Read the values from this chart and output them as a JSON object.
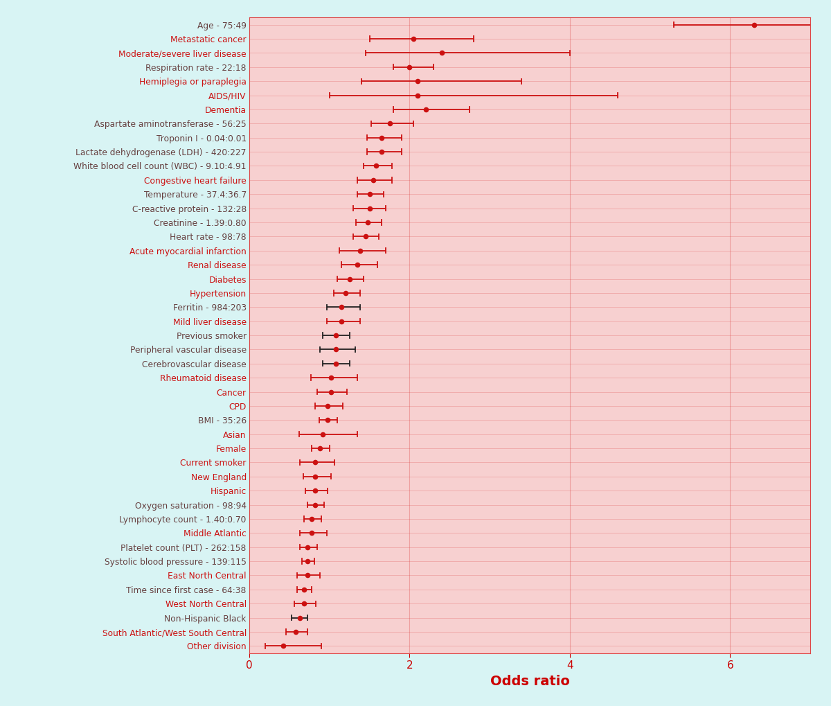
{
  "labels": [
    "Age - 75:49",
    "Metastatic cancer",
    "Moderate/severe liver disease",
    "Respiration rate - 22:18",
    "Hemiplegia or paraplegia",
    "AIDS/HIV",
    "Dementia",
    "Aspartate aminotransferase - 56:25",
    "Troponin I - 0.04:0.01",
    "Lactate dehydrogenase (LDH) - 420:227",
    "White blood cell count (WBC) - 9.10:4.91",
    "Congestive heart failure",
    "Temperature - 37.4:36.7",
    "C-reactive protein - 132:28",
    "Creatinine - 1.39:0.80",
    "Heart rate - 98:78",
    "Acute myocardial infarction",
    "Renal disease",
    "Diabetes",
    "Hypertension",
    "Ferritin - 984:203",
    "Mild liver disease",
    "Previous smoker",
    "Peripheral vascular disease",
    "Cerebrovascular disease",
    "Rheumatoid disease",
    "Cancer",
    "CPD",
    "BMI - 35:26",
    "Asian",
    "Female",
    "Current smoker",
    "New England",
    "Hispanic",
    "Oxygen saturation - 98:94",
    "Lymphocyte count - 1.40:0.70",
    "Middle Atlantic",
    "Platelet count (PLT) - 262:158",
    "Systolic blood pressure - 139:115",
    "East North Central",
    "Time since first case - 64:38",
    "West North Central",
    "Non-Hispanic Black",
    "South Atlantic/West South Central",
    "Other division"
  ],
  "estimates": [
    6.3,
    2.05,
    2.4,
    2.0,
    2.1,
    2.1,
    2.2,
    1.75,
    1.65,
    1.65,
    1.58,
    1.55,
    1.5,
    1.5,
    1.48,
    1.45,
    1.38,
    1.35,
    1.25,
    1.2,
    1.15,
    1.15,
    1.08,
    1.08,
    1.08,
    1.02,
    1.02,
    0.98,
    0.98,
    0.92,
    0.88,
    0.82,
    0.82,
    0.82,
    0.82,
    0.78,
    0.78,
    0.73,
    0.73,
    0.73,
    0.68,
    0.68,
    0.63,
    0.58,
    0.42
  ],
  "ci_low": [
    5.3,
    1.5,
    1.45,
    1.8,
    1.4,
    1.0,
    1.8,
    1.52,
    1.47,
    1.47,
    1.43,
    1.35,
    1.35,
    1.3,
    1.33,
    1.3,
    1.12,
    1.15,
    1.1,
    1.05,
    0.97,
    0.97,
    0.92,
    0.88,
    0.92,
    0.77,
    0.85,
    0.82,
    0.87,
    0.62,
    0.78,
    0.63,
    0.67,
    0.7,
    0.73,
    0.68,
    0.63,
    0.63,
    0.66,
    0.6,
    0.6,
    0.56,
    0.53,
    0.46,
    0.2
  ],
  "ci_high": [
    7.5,
    2.8,
    4.0,
    2.3,
    3.4,
    4.6,
    2.75,
    2.05,
    1.9,
    1.9,
    1.78,
    1.78,
    1.68,
    1.7,
    1.65,
    1.62,
    1.7,
    1.6,
    1.43,
    1.38,
    1.38,
    1.38,
    1.25,
    1.32,
    1.25,
    1.35,
    1.22,
    1.17,
    1.1,
    1.35,
    1.0,
    1.06,
    1.02,
    0.98,
    0.93,
    0.9,
    0.97,
    0.85,
    0.81,
    0.88,
    0.78,
    0.83,
    0.73,
    0.73,
    0.9
  ],
  "dark_line_items": [
    "Ferritin - 984:203",
    "Previous smoker",
    "Peripheral vascular disease",
    "Cerebrovascular disease",
    "Non-Hispanic Black"
  ],
  "point_color": "#cc1111",
  "line_color_red": "#cc1111",
  "line_color_dark": "#222222",
  "xlabel": "Odds ratio",
  "xlabel_color": "#cc0000",
  "xlim": [
    0,
    7.0
  ],
  "xticks": [
    0,
    2,
    4,
    6
  ],
  "grid_color": "#dd4444",
  "grid_alpha": 0.35,
  "label_color_dark": "#664040",
  "label_color_red": "#cc1111",
  "dark_label_items": [
    "Aspartate aminotransferase - 56:25",
    "Troponin I - 0.04:0.01",
    "Lactate dehydrogenase (LDH) - 420:227",
    "White blood cell count (WBC) - 9.10:4.91",
    "Temperature - 37.4:36.7",
    "C-reactive protein - 132:28",
    "Creatinine - 1.39:0.80",
    "Heart rate - 98:78",
    "Ferritin - 984:203",
    "Previous smoker",
    "Peripheral vascular disease",
    "Cerebrovascular disease",
    "BMI - 35:26",
    "Oxygen saturation - 98:94",
    "Lymphocyte count - 1.40:0.70",
    "Platelet count (PLT) - 262:158",
    "Systolic blood pressure - 139:115",
    "Time since first case - 64:38",
    "Respiration rate - 22:18",
    "Age - 75:49",
    "Non-Hispanic Black"
  ],
  "bg_color": "#f7d0d0",
  "figure_bg": "#d8f4f4"
}
